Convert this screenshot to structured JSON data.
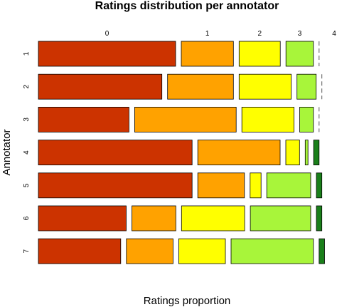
{
  "chart_data": {
    "type": "mosaic",
    "title": "Ratings distribution per annotator",
    "xlabel": "Ratings proportion",
    "ylabel": "Annotator",
    "rating_labels": [
      "0",
      "1",
      "2",
      "3",
      "4"
    ],
    "annotators": [
      "1",
      "2",
      "3",
      "4",
      "5",
      "6",
      "7"
    ],
    "colors": [
      "#cc3300",
      "#ffa200",
      "#ffff00",
      "#a8f53a",
      "#1a7f1a"
    ],
    "proportions": [
      [
        0.5,
        0.19,
        0.15,
        0.1,
        0.0
      ],
      [
        0.45,
        0.24,
        0.19,
        0.07,
        0.0
      ],
      [
        0.33,
        0.37,
        0.19,
        0.05,
        0.0
      ],
      [
        0.56,
        0.3,
        0.05,
        0.01,
        0.02
      ],
      [
        0.56,
        0.17,
        0.04,
        0.16,
        0.02
      ],
      [
        0.32,
        0.16,
        0.23,
        0.22,
        0.02
      ],
      [
        0.3,
        0.17,
        0.17,
        0.3,
        0.02
      ]
    ]
  }
}
